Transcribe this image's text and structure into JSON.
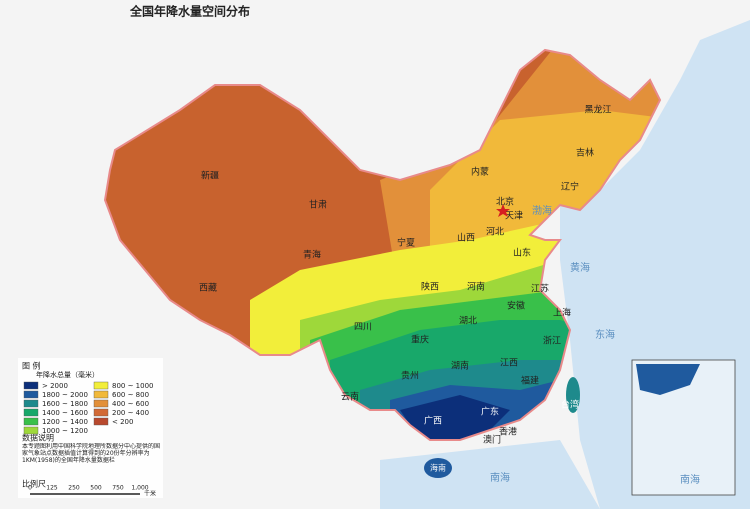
{
  "title": "全国年降水量空间分布",
  "provinces": [
    "新疆",
    "甘肃",
    "青海",
    "西藏",
    "内蒙",
    "黑龙江",
    "吉林",
    "辽宁",
    "北京",
    "天津",
    "河北",
    "山西",
    "宁夏",
    "陕西",
    "河南",
    "山东",
    "江苏",
    "安徽",
    "上海",
    "湖北",
    "浙江",
    "四川",
    "重庆",
    "湖南",
    "江西",
    "贵州",
    "福建",
    "云南",
    "台湾",
    "广西",
    "广东",
    "香港",
    "澳门",
    "海南"
  ],
  "seas": [
    "渤海",
    "黄海",
    "东海",
    "南海",
    "南海"
  ],
  "legend": {
    "title": "图 例",
    "subtitle": "年降水总量（毫米）",
    "items": [
      {
        "label": "> 2000",
        "color": "#0c2f7a"
      },
      {
        "label": "1800 ~ 2000",
        "color": "#1f5a9e"
      },
      {
        "label": "1600 ~ 1800",
        "color": "#1e8a8c"
      },
      {
        "label": "1400 ~ 1600",
        "color": "#18a86a"
      },
      {
        "label": "1200 ~ 1400",
        "color": "#39c04a"
      },
      {
        "label": "1000 ~ 1200",
        "color": "#9ed83a"
      },
      {
        "label": "800 ~ 1000",
        "color": "#f2ee3a"
      },
      {
        "label": "600 ~ 800",
        "color": "#f1b93a"
      },
      {
        "label": "400 ~ 600",
        "color": "#e2903a"
      },
      {
        "label": "200 ~ 400",
        "color": "#d26a36"
      },
      {
        "label": "< 200",
        "color": "#b8492e"
      }
    ],
    "note_title": "数据说明",
    "note": "本专题图利用中国科学院地理所数据分中心提供的国家气象站点数据插值计算得到的20份年分辨率为 1KM(1958)的全国年降水量数据栏"
  },
  "scale": {
    "title": "比例尺",
    "ticks": [
      "0",
      "125",
      "250",
      "500",
      "750",
      "1,000"
    ],
    "unit": "千米"
  }
}
